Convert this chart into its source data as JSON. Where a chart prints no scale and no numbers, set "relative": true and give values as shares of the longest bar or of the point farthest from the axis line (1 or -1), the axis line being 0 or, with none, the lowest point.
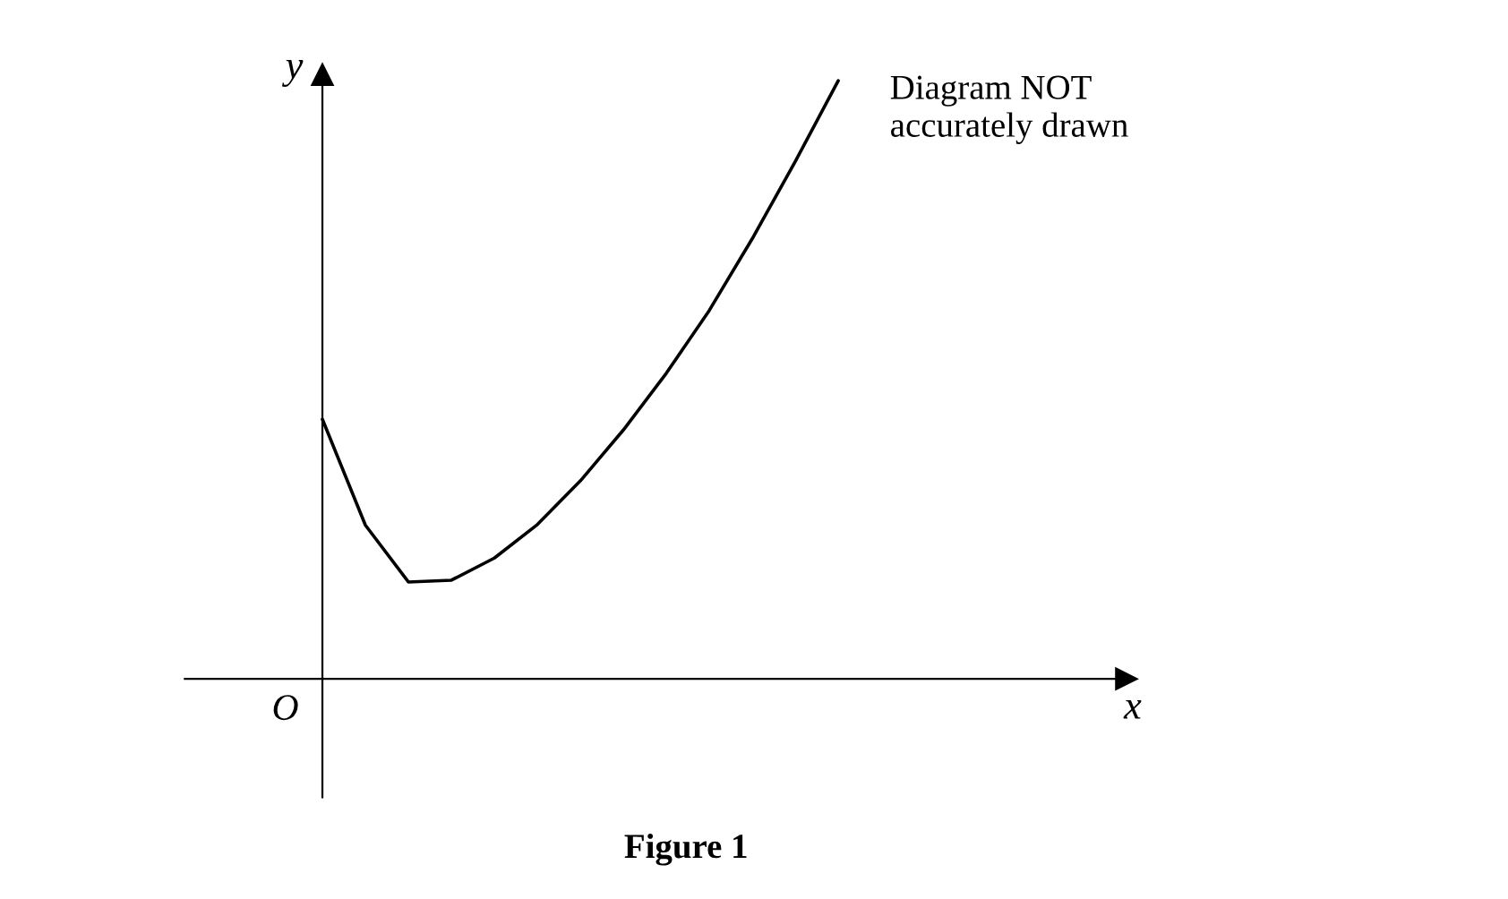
{
  "chart_data": {
    "type": "line",
    "relative": true,
    "title": "Figure 1",
    "categories": [
      null,
      null,
      null,
      null,
      null,
      null,
      null,
      null,
      null,
      null,
      null,
      null,
      null
    ],
    "series": [
      {
        "color": "#000000",
        "values": [
          0.434,
          0.257,
          0.162,
          0.165,
          0.202,
          0.258,
          0.331,
          0.416,
          0.511,
          0.616,
          0.736,
          0.865,
          1
        ]
      }
    ],
    "annotations": [
      "O",
      "x",
      "y",
      "Diagram NOT\naccurately drawn"
    ]
  }
}
